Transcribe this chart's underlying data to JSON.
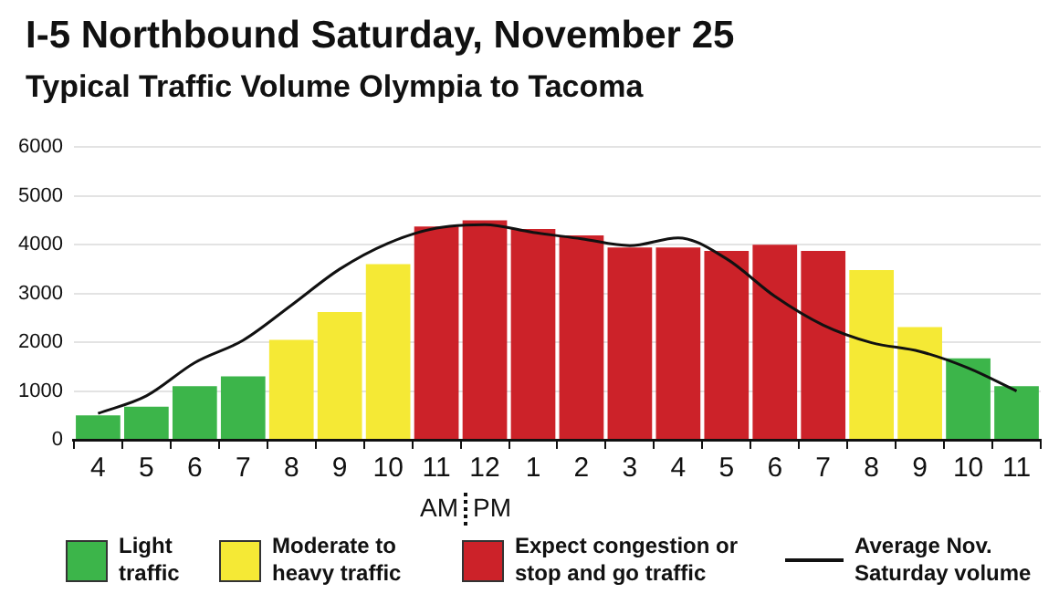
{
  "chart_data": {
    "type": "bar",
    "title": "I-5 Northbound Saturday, November 25",
    "subtitle": "Typical Traffic Volume Olympia to Tacoma",
    "categories": [
      "4",
      "5",
      "6",
      "7",
      "8",
      "9",
      "10",
      "11",
      "12",
      "1",
      "2",
      "3",
      "4",
      "5",
      "6",
      "7",
      "8",
      "9",
      "10",
      "11"
    ],
    "series": [
      {
        "name": "Light traffic",
        "color": "#3cb54a",
        "values": [
          500,
          680,
          1100,
          1300,
          null,
          null,
          null,
          null,
          null,
          null,
          null,
          null,
          null,
          null,
          null,
          null,
          null,
          null,
          1670,
          1100
        ]
      },
      {
        "name": "Moderate to heavy traffic",
        "color": "#f5e935",
        "values": [
          null,
          null,
          null,
          null,
          2050,
          2620,
          3600,
          null,
          null,
          null,
          null,
          null,
          null,
          null,
          null,
          null,
          3480,
          2310,
          null,
          null
        ]
      },
      {
        "name": "Expect congestion or stop and go traffic",
        "color": "#cc2229",
        "values": [
          null,
          null,
          null,
          null,
          null,
          null,
          null,
          4370,
          4500,
          4320,
          4190,
          3940,
          3940,
          3870,
          4000,
          3870,
          null,
          null,
          null,
          null
        ]
      },
      {
        "name": "Average Nov. Saturday volume",
        "type": "line",
        "color": "#111111",
        "values": [
          540,
          900,
          1580,
          2040,
          2760,
          3500,
          4030,
          4340,
          4410,
          4250,
          4120,
          3980,
          4140,
          3710,
          2940,
          2350,
          1990,
          1810,
          1470,
          1000
        ]
      }
    ],
    "ylim": [
      0,
      6000
    ],
    "yticks": [
      0,
      1000,
      2000,
      3000,
      4000,
      5000,
      6000
    ],
    "grid": "y",
    "legend": "bottom",
    "marker": "none",
    "line_style": "solid",
    "annotations": [
      "AM",
      "PM"
    ]
  }
}
